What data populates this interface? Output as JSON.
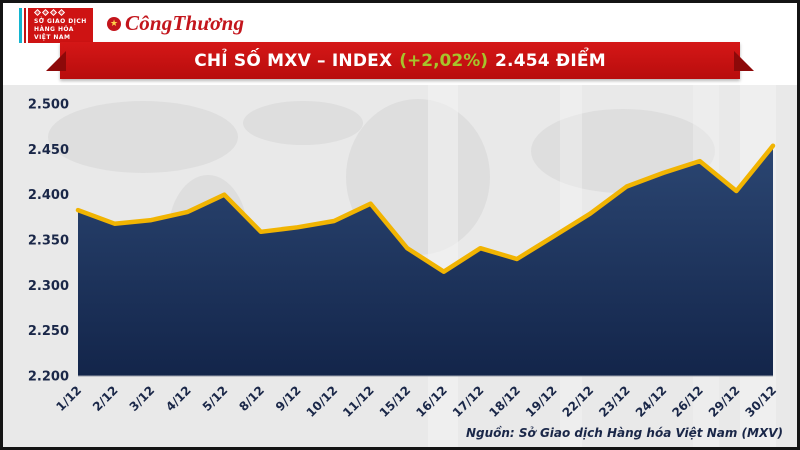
{
  "logos": {
    "mxv": {
      "line1": "SỞ GIAO DỊCH",
      "line2": "HÀNG HÓA",
      "line3": "VIỆT NAM"
    },
    "congthuong": "CôngThương"
  },
  "icons": {
    "congthuong_emblem": "★"
  },
  "banner": {
    "title": "CHỈ SỐ MXV – INDEX",
    "change": "(+2,02%)",
    "value": "2.454 ĐIỂM"
  },
  "chart_data": {
    "type": "area",
    "title": "CHỈ SỐ MXV – INDEX (+2,02%) 2.454 ĐIỂM",
    "x": [
      "1/12",
      "2/12",
      "3/12",
      "4/12",
      "5/12",
      "8/12",
      "9/12",
      "10/12",
      "11/12",
      "15/12",
      "16/12",
      "17/12",
      "18/12",
      "19/12",
      "22/12",
      "23/12",
      "24/12",
      "26/12",
      "29/12",
      "30/12"
    ],
    "values": [
      2383,
      2368,
      2372,
      2381,
      2400,
      2359,
      2364,
      2371,
      2390,
      2341,
      2315,
      2341,
      2329,
      2354,
      2379,
      2409,
      2424,
      2437,
      2404,
      2454
    ],
    "ylim": [
      2200,
      2500
    ],
    "ytick_step": 50,
    "ytick_labels": [
      "2.200",
      "2.250",
      "2.300",
      "2.350",
      "2.400",
      "2.450",
      "2.500"
    ],
    "unit": "ĐIỂM",
    "grid": false,
    "legend": "none",
    "line_color": "#f1b402",
    "fill_top": "#2b4672",
    "fill_bottom": "#13254a",
    "label_color": "#1a2748"
  },
  "source": "Nguồn: Sở Giao dịch Hàng hóa Việt Nam (MXV)"
}
